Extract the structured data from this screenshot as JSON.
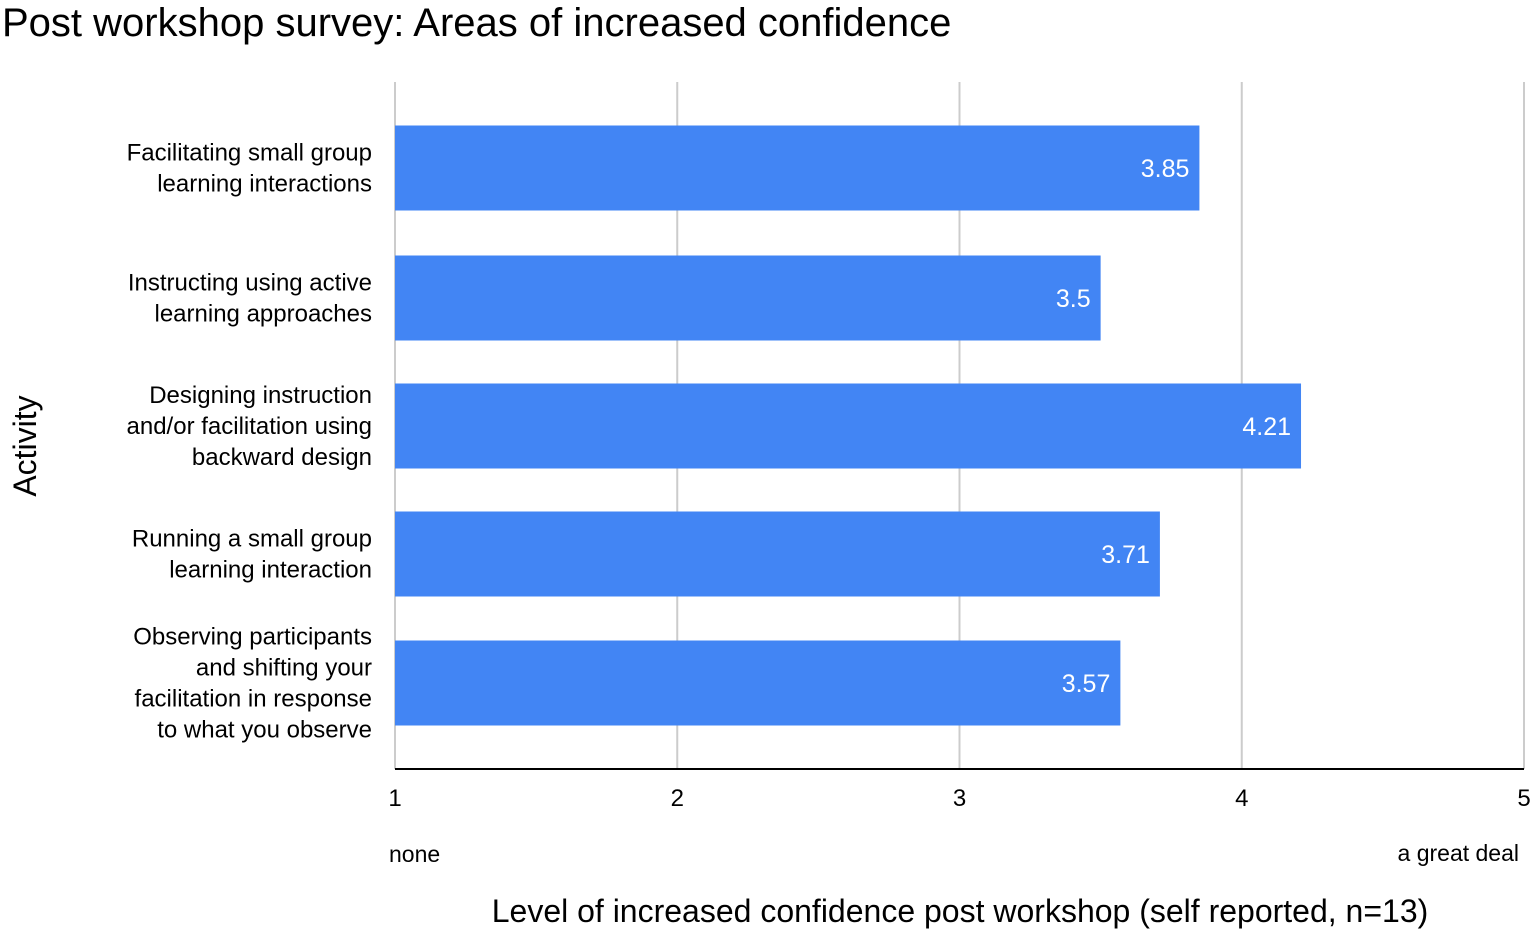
{
  "chart_data": {
    "type": "bar",
    "orientation": "horizontal",
    "title": "Post workshop survey: Areas of increased confidence",
    "xlabel": "Level of increased confidence post workshop (self reported, n=13)",
    "ylabel": "Activity",
    "xlim": [
      1,
      5
    ],
    "xticks": [
      "1",
      "2",
      "3",
      "4",
      "5"
    ],
    "xtick_values": [
      1,
      2,
      3,
      4,
      5
    ],
    "scale_low_label": "none",
    "scale_high_label": "a great deal",
    "categories": [
      [
        "Facilitating small group",
        "learning interactions"
      ],
      [
        "Instructing using active",
        "learning approaches"
      ],
      [
        "Designing instruction",
        "and/or facilitation using",
        "backward design"
      ],
      [
        "Running a small group",
        "learning interaction"
      ],
      [
        "Observing participants",
        "and shifting your",
        "facilitation in response",
        "to what you observe"
      ]
    ],
    "values": [
      3.85,
      3.5,
      4.21,
      3.71,
      3.57
    ],
    "value_labels": [
      "3.85",
      "3.5",
      "4.21",
      "3.71",
      "3.57"
    ],
    "grid": true,
    "legend": "none",
    "bar_color": "#4285f4"
  }
}
